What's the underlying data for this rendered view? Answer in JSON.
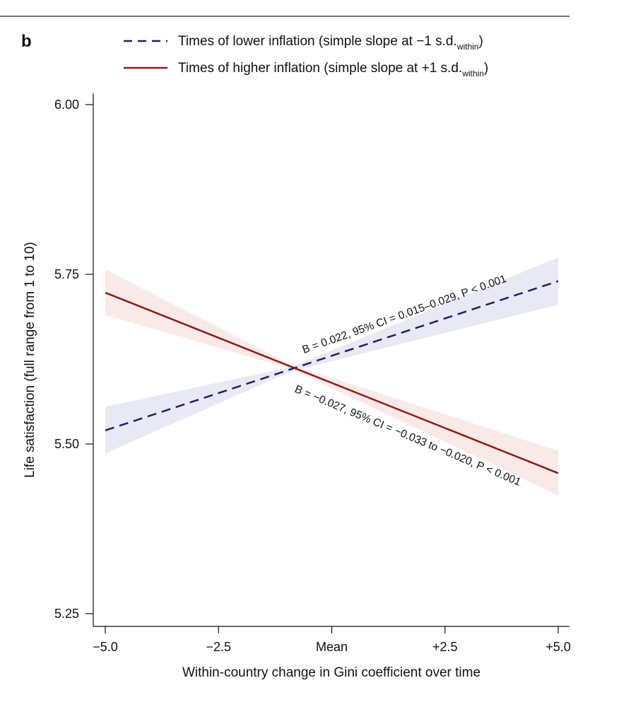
{
  "chart_data": {
    "type": "line",
    "panel_label": "b",
    "xlabel": "Within-country change in Gini coefficient over time",
    "ylabel": "Life satisfaction (full range from 1 to 10)",
    "x_ticks": [
      {
        "value": -5.0,
        "label": "−5.0"
      },
      {
        "value": -2.5,
        "label": "−2.5"
      },
      {
        "value": 0,
        "label": "Mean"
      },
      {
        "value": 2.5,
        "label": "+2.5"
      },
      {
        "value": 5.0,
        "label": "+5.0"
      }
    ],
    "y_ticks": [
      {
        "value": 5.25,
        "label": "5.25"
      },
      {
        "value": 5.5,
        "label": "5.50"
      },
      {
        "value": 5.75,
        "label": "5.75"
      },
      {
        "value": 6.0,
        "label": "6.00"
      }
    ],
    "xlim": [
      -5.3,
      5.3
    ],
    "ylim": [
      5.25,
      6.0
    ],
    "grid": false,
    "legend_position": "top",
    "series": [
      {
        "name": "Times of lower inflation (simple slope at −1 s.d.within)",
        "legend_main": "Times of lower inflation (simple slope at −1 s.d.",
        "legend_sub": "within",
        "legend_close": ")",
        "style": "dashed",
        "color": "#1c2260",
        "band_color": "#e6e7f3",
        "x": [
          -5.0,
          5.0
        ],
        "y": [
          5.52,
          5.74
        ],
        "ci_lower": [
          5.486,
          5.705
        ],
        "ci_upper": [
          5.555,
          5.775
        ],
        "annotation": "B = 0.022, 95% CI = 0.015–0.029, P < 0.001"
      },
      {
        "name": "Times of higher inflation (simple slope at +1 s.d.within)",
        "legend_main": "Times of higher inflation (simple slope at +1 s.d.",
        "legend_sub": "within",
        "legend_close": ")",
        "style": "solid",
        "color": "#8b1c1c",
        "band_color": "#f8e8e6",
        "x": [
          -5.0,
          5.0
        ],
        "y": [
          5.723,
          5.457
        ],
        "ci_lower": [
          5.69,
          5.424
        ],
        "ci_upper": [
          5.757,
          5.49
        ],
        "annotation": "B = −0.027, 95% CI = −0.033 to −0.020, P < 0.001"
      }
    ]
  }
}
